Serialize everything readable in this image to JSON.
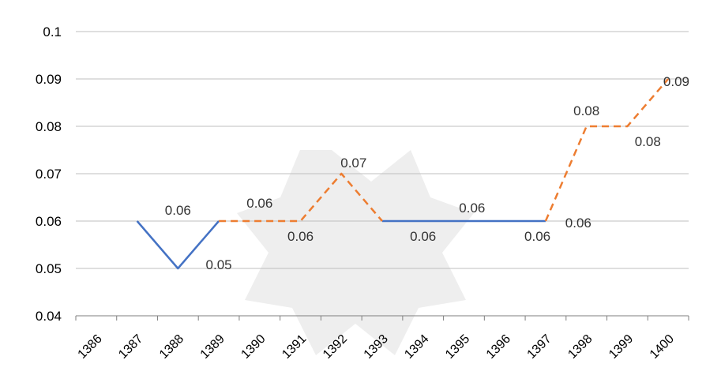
{
  "chart_data": {
    "type": "line",
    "title": "",
    "xlabel": "",
    "ylabel": "",
    "ylim": [
      0.04,
      0.1
    ],
    "yticks": [
      "0.1",
      "0.09",
      "0.08",
      "0.07",
      "0.06",
      "0.05",
      "0.04"
    ],
    "categories": [
      "1386",
      "1387",
      "1388",
      "1389",
      "1390",
      "1391",
      "1392",
      "1393",
      "1394",
      "1395",
      "1396",
      "1397",
      "1398",
      "1399",
      "1400"
    ],
    "grid": true,
    "legend": "none",
    "series": [
      {
        "style": "solid",
        "color": "#4472C4",
        "points": [
          {
            "x": "1387",
            "y": 0.06
          },
          {
            "x": "1388",
            "y": 0.05
          },
          {
            "x": "1389",
            "y": 0.06
          }
        ],
        "gap_points": [
          {
            "x": "1393",
            "y": 0.06
          },
          {
            "x": "1397",
            "y": 0.06
          }
        ]
      },
      {
        "style": "dashed",
        "color": "#ED7D31",
        "points": [
          {
            "x": "1389",
            "y": 0.06
          },
          {
            "x": "1391",
            "y": 0.06
          },
          {
            "x": "1392",
            "y": 0.07
          },
          {
            "x": "1393",
            "y": 0.06
          }
        ],
        "gap_points": [
          {
            "x": "1397",
            "y": 0.06
          },
          {
            "x": "1398",
            "y": 0.08
          },
          {
            "x": "1399",
            "y": 0.08
          },
          {
            "x": "1400",
            "y": 0.09
          }
        ]
      }
    ],
    "data_labels": [
      {
        "text": "0.06",
        "x": "1388",
        "y": 0.06,
        "side": "above"
      },
      {
        "text": "0.05",
        "x": "1389",
        "y": 0.0535,
        "side": "below"
      },
      {
        "text": "0.06",
        "x": "1390",
        "y": 0.0615,
        "side": "above"
      },
      {
        "text": "0.06",
        "x": "1391",
        "y": 0.0595,
        "side": "below"
      },
      {
        "text": "0.07",
        "x": "1392.3",
        "y": 0.07,
        "side": "above"
      },
      {
        "text": "0.06",
        "x": "1394",
        "y": 0.0595,
        "side": "below"
      },
      {
        "text": "0.06",
        "x": "1395.2",
        "y": 0.0605,
        "side": "above"
      },
      {
        "text": "0.06",
        "x": "1396.8",
        "y": 0.0595,
        "side": "below"
      },
      {
        "text": "0.06",
        "x": "1397.8",
        "y": 0.0597,
        "side": "level"
      },
      {
        "text": "0.08",
        "x": "1398",
        "y": 0.081,
        "side": "above"
      },
      {
        "text": "0.08",
        "x": "1399.5",
        "y": 0.0795,
        "side": "below"
      },
      {
        "text": "0.09",
        "x": "1400.2",
        "y": 0.0895,
        "side": "level"
      }
    ]
  }
}
